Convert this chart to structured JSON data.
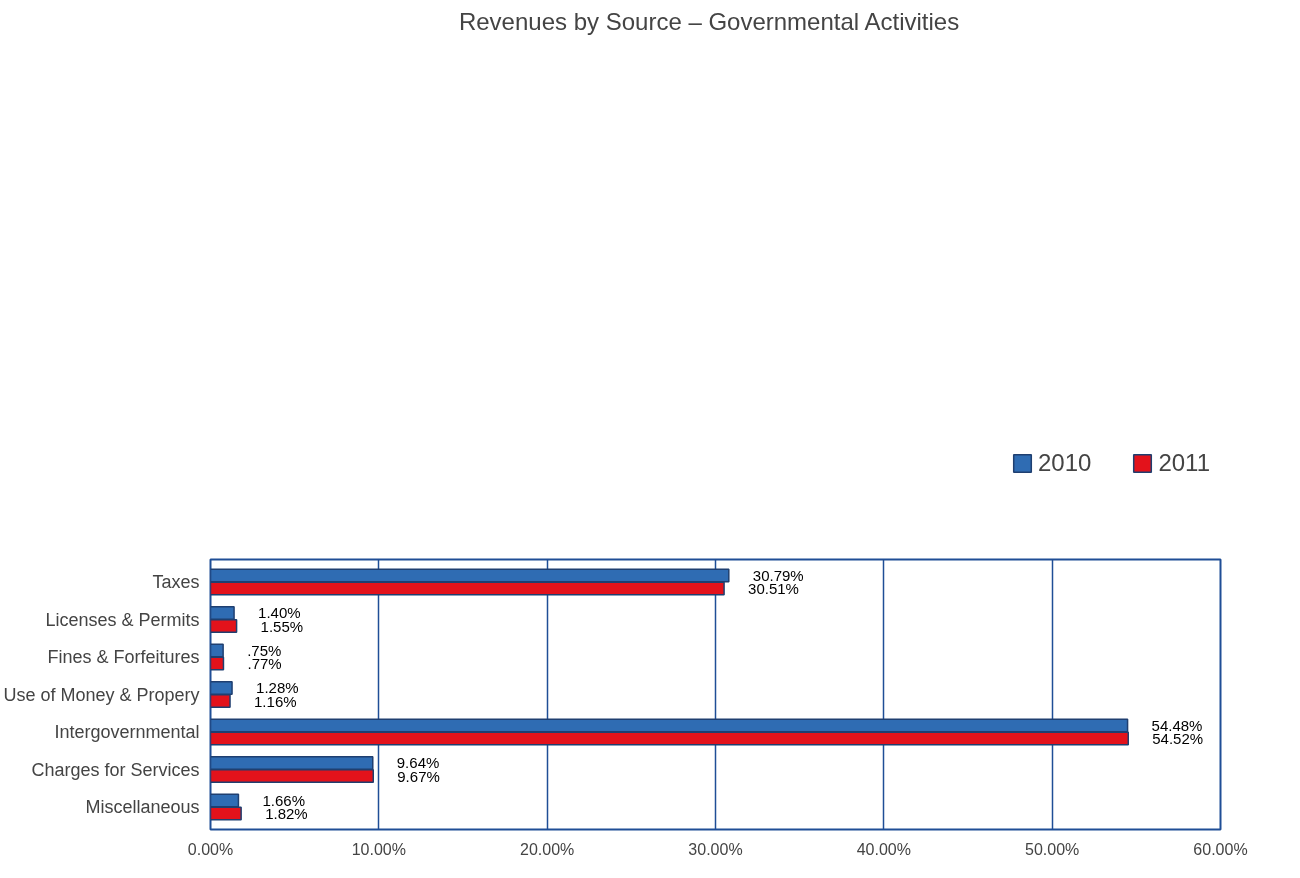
{
  "chart_data": {
    "type": "bar",
    "orientation": "horizontal",
    "title": "Revenues by Source – Governmental Activities",
    "categories": [
      "Taxes",
      "Licenses & Permits",
      "Fines & Forfeitures",
      "Use of Money & Propery",
      "Intergovernmental",
      "Charges for Services",
      "Miscellaneous"
    ],
    "series": [
      {
        "name": "2010",
        "color": "#2f6cb3",
        "values": [
          30.79,
          1.4,
          0.75,
          1.28,
          54.48,
          9.64,
          1.66
        ],
        "value_labels": [
          "30.79%",
          "1.40%",
          ".75%",
          "1.28%",
          "54.48%",
          "9.64%",
          "1.66%"
        ]
      },
      {
        "name": "2011",
        "color": "#e3121b",
        "values": [
          30.51,
          1.55,
          0.77,
          1.16,
          54.52,
          9.67,
          1.82
        ],
        "value_labels": [
          "30.51%",
          "1.55%",
          ".77%",
          "1.16%",
          "54.52%",
          "9.67%",
          "1.82%"
        ]
      }
    ],
    "xlim": [
      0,
      60
    ],
    "xticks": [
      {
        "value": 0,
        "label": "0.00%"
      },
      {
        "value": 10,
        "label": "10.00%"
      },
      {
        "value": 20,
        "label": "20.00%"
      },
      {
        "value": 30,
        "label": "30.00%"
      },
      {
        "value": 40,
        "label": "40.00%"
      },
      {
        "value": 50,
        "label": "50.00%"
      },
      {
        "value": 60,
        "label": "60.00%"
      }
    ],
    "grid": "x",
    "legend": "top right"
  }
}
